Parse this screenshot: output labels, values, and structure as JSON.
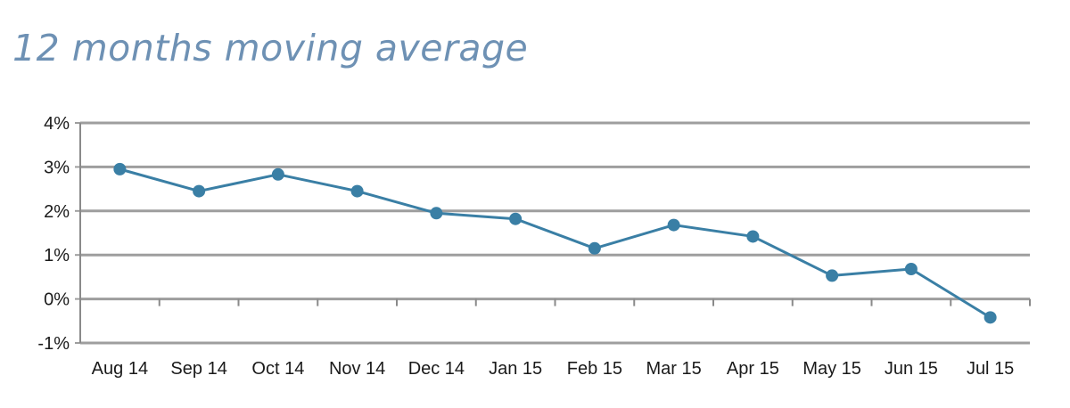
{
  "chart_data": {
    "type": "line",
    "title": "12 months moving average",
    "categories": [
      "Aug 14",
      "Sep 14",
      "Oct 14",
      "Nov 14",
      "Dec 14",
      "Jan 15",
      "Feb 15",
      "Mar 15",
      "Apr 15",
      "May 15",
      "Jun 15",
      "Jul 15"
    ],
    "series": [
      {
        "values": [
          2.95,
          2.45,
          2.83,
          2.45,
          1.95,
          1.82,
          1.15,
          1.68,
          1.42,
          0.53,
          0.68,
          -0.42
        ],
        "color": "#3a7fa5"
      }
    ],
    "ylim": [
      -1,
      4
    ],
    "yticks": [
      -1,
      0,
      1,
      2,
      3,
      4
    ],
    "ytick_format": "%",
    "grid": "horizontal",
    "gridline_color": "#9e9e9e",
    "legend": "none"
  }
}
